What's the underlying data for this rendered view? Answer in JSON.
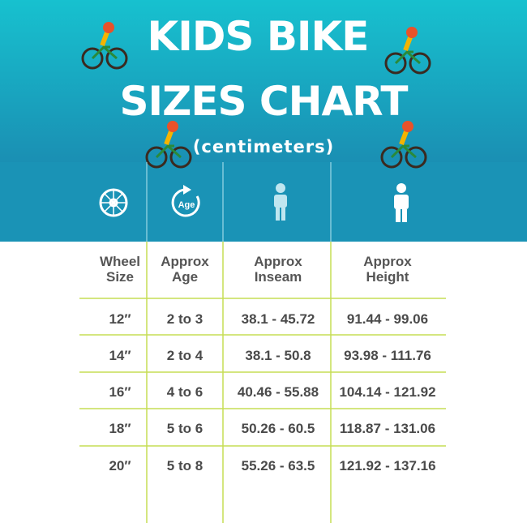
{
  "header": {
    "title_lines": [
      "KIDS BIKE",
      "SIZES CHART"
    ],
    "subtitle": "(centimeters)",
    "age_icon_label": "Age"
  },
  "table": {
    "columns": [
      "Wheel Size",
      "Approx Age",
      "Approx Inseam",
      "Approx Height"
    ],
    "rows": [
      [
        "12″",
        "2 to 3",
        "38.1 - 45.72",
        "91.44 - 99.06"
      ],
      [
        "14″",
        "2 to 4",
        "38.1 - 50.8",
        "93.98 - 111.76"
      ],
      [
        "16″",
        "4 to 6",
        "40.46 - 55.88",
        "104.14 - 121.92"
      ],
      [
        "18″",
        "5 to 6",
        "50.26 - 60.5",
        "118.87 - 131.06"
      ],
      [
        "20″",
        "5 to 8",
        "55.26 - 63.5",
        "121.92 - 137.16"
      ]
    ]
  }
}
